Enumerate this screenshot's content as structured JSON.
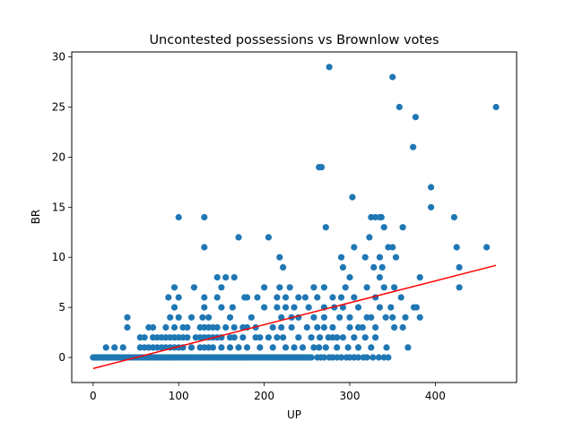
{
  "chart_data": {
    "type": "scatter",
    "title": "Uncontested possessions vs Brownlow votes",
    "xlabel": "UP",
    "ylabel": "BR",
    "xlim": [
      -25,
      495
    ],
    "ylim": [
      -2.5,
      30.5
    ],
    "xticks": [
      0,
      100,
      200,
      300,
      400
    ],
    "yticks": [
      0,
      5,
      10,
      15,
      20,
      25,
      30
    ],
    "grid": false,
    "point_color": "#1f77b4",
    "trend_color": "#ff0000",
    "trendline": {
      "x": [
        0,
        471
      ],
      "y": [
        -1.1,
        9.2
      ]
    },
    "series": [
      {
        "points": [
          [
            0,
            0
          ],
          [
            2,
            0
          ],
          [
            4,
            0
          ],
          [
            6,
            0
          ],
          [
            8,
            0
          ],
          [
            10,
            0
          ],
          [
            12,
            0
          ],
          [
            14,
            0
          ],
          [
            16,
            0
          ],
          [
            18,
            0
          ],
          [
            20,
            0
          ],
          [
            22,
            0
          ],
          [
            24,
            0
          ],
          [
            26,
            0
          ],
          [
            28,
            0
          ],
          [
            30,
            0
          ],
          [
            33,
            0
          ],
          [
            36,
            0
          ],
          [
            39,
            0
          ],
          [
            42,
            0
          ],
          [
            45,
            0
          ],
          [
            48,
            0
          ],
          [
            51,
            0
          ],
          [
            54,
            0
          ],
          [
            57,
            0
          ],
          [
            60,
            0
          ],
          [
            63,
            0
          ],
          [
            66,
            0
          ],
          [
            69,
            0
          ],
          [
            72,
            0
          ],
          [
            75,
            0
          ],
          [
            78,
            0
          ],
          [
            81,
            0
          ],
          [
            84,
            0
          ],
          [
            87,
            0
          ],
          [
            90,
            0
          ],
          [
            93,
            0
          ],
          [
            96,
            0
          ],
          [
            99,
            0
          ],
          [
            102,
            0
          ],
          [
            105,
            0
          ],
          [
            108,
            0
          ],
          [
            111,
            0
          ],
          [
            114,
            0
          ],
          [
            117,
            0
          ],
          [
            120,
            0
          ],
          [
            123,
            0
          ],
          [
            126,
            0
          ],
          [
            129,
            0
          ],
          [
            132,
            0
          ],
          [
            135,
            0
          ],
          [
            138,
            0
          ],
          [
            141,
            0
          ],
          [
            144,
            0
          ],
          [
            147,
            0
          ],
          [
            150,
            0
          ],
          [
            153,
            0
          ],
          [
            156,
            0
          ],
          [
            159,
            0
          ],
          [
            162,
            0
          ],
          [
            165,
            0
          ],
          [
            168,
            0
          ],
          [
            171,
            0
          ],
          [
            174,
            0
          ],
          [
            177,
            0
          ],
          [
            180,
            0
          ],
          [
            183,
            0
          ],
          [
            186,
            0
          ],
          [
            189,
            0
          ],
          [
            192,
            0
          ],
          [
            195,
            0
          ],
          [
            198,
            0
          ],
          [
            201,
            0
          ],
          [
            204,
            0
          ],
          [
            207,
            0
          ],
          [
            210,
            0
          ],
          [
            213,
            0
          ],
          [
            216,
            0
          ],
          [
            219,
            0
          ],
          [
            222,
            0
          ],
          [
            225,
            0
          ],
          [
            228,
            0
          ],
          [
            231,
            0
          ],
          [
            234,
            0
          ],
          [
            237,
            0
          ],
          [
            240,
            0
          ],
          [
            243,
            0
          ],
          [
            246,
            0
          ],
          [
            249,
            0
          ],
          [
            252,
            0
          ],
          [
            255,
            0
          ],
          [
            262,
            0
          ],
          [
            266,
            0
          ],
          [
            270,
            0
          ],
          [
            276,
            0
          ],
          [
            280,
            0
          ],
          [
            285,
            0
          ],
          [
            290,
            0
          ],
          [
            296,
            0
          ],
          [
            300,
            0
          ],
          [
            305,
            0
          ],
          [
            310,
            0
          ],
          [
            316,
            0
          ],
          [
            320,
            0
          ],
          [
            327,
            0
          ],
          [
            334,
            0
          ],
          [
            340,
            0
          ],
          [
            345,
            0
          ],
          [
            15,
            1
          ],
          [
            25,
            1
          ],
          [
            35,
            1
          ],
          [
            55,
            1
          ],
          [
            60,
            1
          ],
          [
            65,
            1
          ],
          [
            70,
            1
          ],
          [
            75,
            1
          ],
          [
            80,
            1
          ],
          [
            85,
            1
          ],
          [
            90,
            1
          ],
          [
            95,
            1
          ],
          [
            100,
            1
          ],
          [
            105,
            1
          ],
          [
            115,
            1
          ],
          [
            125,
            1
          ],
          [
            130,
            1
          ],
          [
            135,
            1
          ],
          [
            140,
            1
          ],
          [
            150,
            1
          ],
          [
            160,
            1
          ],
          [
            170,
            1
          ],
          [
            180,
            1
          ],
          [
            195,
            1
          ],
          [
            210,
            1
          ],
          [
            225,
            1
          ],
          [
            235,
            1
          ],
          [
            245,
            1
          ],
          [
            258,
            1
          ],
          [
            264,
            1
          ],
          [
            272,
            1
          ],
          [
            285,
            1
          ],
          [
            298,
            1
          ],
          [
            310,
            1
          ],
          [
            325,
            1
          ],
          [
            343,
            1
          ],
          [
            368,
            1
          ],
          [
            55,
            2
          ],
          [
            60,
            2
          ],
          [
            70,
            2
          ],
          [
            75,
            2
          ],
          [
            80,
            2
          ],
          [
            85,
            2
          ],
          [
            90,
            2
          ],
          [
            95,
            2
          ],
          [
            100,
            2
          ],
          [
            105,
            2
          ],
          [
            110,
            2
          ],
          [
            120,
            2
          ],
          [
            125,
            2
          ],
          [
            130,
            2
          ],
          [
            135,
            2
          ],
          [
            140,
            2
          ],
          [
            145,
            2
          ],
          [
            150,
            2
          ],
          [
            160,
            2
          ],
          [
            165,
            2
          ],
          [
            175,
            2
          ],
          [
            190,
            2
          ],
          [
            195,
            2
          ],
          [
            205,
            2
          ],
          [
            215,
            2
          ],
          [
            222,
            2
          ],
          [
            240,
            2
          ],
          [
            255,
            2
          ],
          [
            265,
            2
          ],
          [
            275,
            2
          ],
          [
            280,
            2
          ],
          [
            285,
            2
          ],
          [
            292,
            2
          ],
          [
            305,
            2
          ],
          [
            318,
            2
          ],
          [
            330,
            2
          ],
          [
            40,
            3
          ],
          [
            65,
            3
          ],
          [
            70,
            3
          ],
          [
            85,
            3
          ],
          [
            95,
            3
          ],
          [
            105,
            3
          ],
          [
            110,
            3
          ],
          [
            125,
            3
          ],
          [
            130,
            3
          ],
          [
            135,
            3
          ],
          [
            140,
            3
          ],
          [
            145,
            3
          ],
          [
            155,
            3
          ],
          [
            165,
            3
          ],
          [
            175,
            3
          ],
          [
            180,
            3
          ],
          [
            190,
            3
          ],
          [
            210,
            3
          ],
          [
            220,
            3
          ],
          [
            232,
            3
          ],
          [
            250,
            3
          ],
          [
            262,
            3
          ],
          [
            270,
            3
          ],
          [
            280,
            3
          ],
          [
            300,
            3
          ],
          [
            310,
            3
          ],
          [
            315,
            3
          ],
          [
            330,
            3
          ],
          [
            352,
            3
          ],
          [
            362,
            3
          ],
          [
            40,
            4
          ],
          [
            90,
            4
          ],
          [
            100,
            4
          ],
          [
            115,
            4
          ],
          [
            128,
            4
          ],
          [
            135,
            4
          ],
          [
            160,
            4
          ],
          [
            185,
            4
          ],
          [
            220,
            4
          ],
          [
            232,
            4
          ],
          [
            240,
            4
          ],
          [
            258,
            4
          ],
          [
            270,
            4
          ],
          [
            288,
            4
          ],
          [
            300,
            4
          ],
          [
            320,
            4
          ],
          [
            325,
            4
          ],
          [
            342,
            4
          ],
          [
            350,
            4
          ],
          [
            365,
            4
          ],
          [
            382,
            4
          ],
          [
            95,
            5
          ],
          [
            130,
            5
          ],
          [
            150,
            5
          ],
          [
            163,
            5
          ],
          [
            200,
            5
          ],
          [
            215,
            5
          ],
          [
            225,
            5
          ],
          [
            235,
            5
          ],
          [
            252,
            5
          ],
          [
            270,
            5
          ],
          [
            282,
            5
          ],
          [
            292,
            5
          ],
          [
            310,
            5
          ],
          [
            335,
            5
          ],
          [
            348,
            5
          ],
          [
            375,
            5
          ],
          [
            378,
            5
          ],
          [
            88,
            6
          ],
          [
            100,
            6
          ],
          [
            130,
            6
          ],
          [
            145,
            6
          ],
          [
            177,
            6
          ],
          [
            180,
            6
          ],
          [
            192,
            6
          ],
          [
            215,
            6
          ],
          [
            225,
            6
          ],
          [
            240,
            6
          ],
          [
            248,
            6
          ],
          [
            262,
            6
          ],
          [
            280,
            6
          ],
          [
            290,
            6
          ],
          [
            305,
            6
          ],
          [
            330,
            6
          ],
          [
            360,
            6
          ],
          [
            95,
            7
          ],
          [
            118,
            7
          ],
          [
            150,
            7
          ],
          [
            200,
            7
          ],
          [
            218,
            7
          ],
          [
            230,
            7
          ],
          [
            258,
            7
          ],
          [
            270,
            7
          ],
          [
            295,
            7
          ],
          [
            320,
            7
          ],
          [
            340,
            7
          ],
          [
            352,
            7
          ],
          [
            428,
            7
          ],
          [
            145,
            8
          ],
          [
            155,
            8
          ],
          [
            165,
            8
          ],
          [
            300,
            8
          ],
          [
            335,
            8
          ],
          [
            382,
            8
          ],
          [
            222,
            9
          ],
          [
            292,
            9
          ],
          [
            328,
            9
          ],
          [
            338,
            9
          ],
          [
            428,
            9
          ],
          [
            218,
            10
          ],
          [
            290,
            10
          ],
          [
            318,
            10
          ],
          [
            335,
            10
          ],
          [
            354,
            10
          ],
          [
            130,
            11
          ],
          [
            305,
            11
          ],
          [
            345,
            11
          ],
          [
            350,
            11
          ],
          [
            425,
            11
          ],
          [
            460,
            11
          ],
          [
            170,
            12
          ],
          [
            205,
            12
          ],
          [
            323,
            12
          ],
          [
            272,
            13
          ],
          [
            340,
            13
          ],
          [
            362,
            13
          ],
          [
            100,
            14
          ],
          [
            130,
            14
          ],
          [
            325,
            14
          ],
          [
            330,
            14
          ],
          [
            335,
            14
          ],
          [
            337,
            14
          ],
          [
            422,
            14
          ],
          [
            395,
            15
          ],
          [
            303,
            16
          ],
          [
            395,
            17
          ],
          [
            264,
            19
          ],
          [
            267,
            19
          ],
          [
            374,
            21
          ],
          [
            358,
            25
          ],
          [
            471,
            25
          ],
          [
            377,
            24
          ],
          [
            350,
            28
          ],
          [
            276,
            29
          ]
        ]
      }
    ]
  }
}
